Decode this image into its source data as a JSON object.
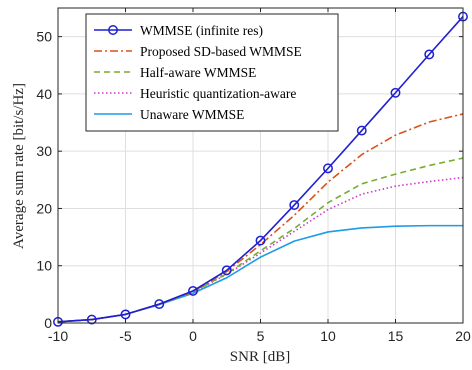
{
  "chart_data": {
    "type": "line",
    "xlabel": "SNR [dB]",
    "ylabel": "Average sum rate [bit/s/Hz]",
    "xlim": [
      -10,
      20
    ],
    "ylim": [
      0,
      55
    ],
    "xticks": [
      -10,
      -5,
      0,
      5,
      10,
      15,
      20
    ],
    "yticks": [
      0,
      10,
      20,
      30,
      40,
      50
    ],
    "grid": true,
    "legend_position": "top-left",
    "x": [
      -10,
      -7.5,
      -5,
      -2.5,
      0,
      2.5,
      5,
      7.5,
      10,
      12.5,
      15,
      17.5,
      20
    ],
    "series": [
      {
        "name": "WMMSE (infinite res)",
        "color": "#1f1fd1",
        "style": "solid-marker-circle",
        "values": [
          0.2,
          0.6,
          1.5,
          3.3,
          5.6,
          9.2,
          14.4,
          20.6,
          27.0,
          33.6,
          40.2,
          46.9,
          53.5
        ]
      },
      {
        "name": "Proposed SD-based WMMSE",
        "color": "#d95319",
        "style": "dashdot",
        "values": [
          0.2,
          0.6,
          1.5,
          3.3,
          5.5,
          9.0,
          13.7,
          18.8,
          24.6,
          29.4,
          32.8,
          35.1,
          36.5
        ]
      },
      {
        "name": "Half-aware WMMSE",
        "color": "#77ac30",
        "style": "dashed",
        "values": [
          0.2,
          0.6,
          1.5,
          3.3,
          5.4,
          8.6,
          12.6,
          16.5,
          21.0,
          24.3,
          26.0,
          27.5,
          28.8
        ]
      },
      {
        "name": "Heuristic quantization-aware",
        "color": "#c83cc8",
        "style": "dotted",
        "values": [
          0.2,
          0.6,
          1.5,
          3.3,
          5.4,
          8.5,
          12.2,
          16.0,
          19.8,
          22.5,
          23.9,
          24.7,
          25.4
        ]
      },
      {
        "name": "Unaware WMMSE",
        "color": "#1e9be6",
        "style": "solid",
        "values": [
          0.2,
          0.6,
          1.5,
          3.2,
          5.2,
          7.9,
          11.5,
          14.3,
          15.9,
          16.6,
          16.9,
          17.0,
          17.0
        ]
      }
    ]
  }
}
